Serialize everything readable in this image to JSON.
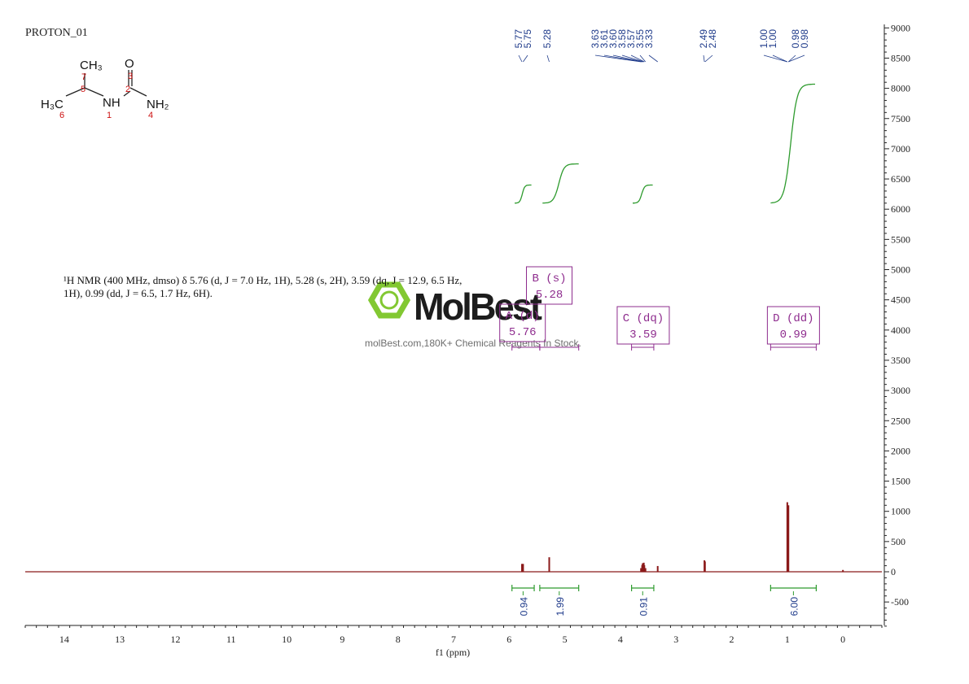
{
  "spectrum_id": "PROTON_01",
  "molecule": {
    "atoms": [
      {
        "label": "CH₃",
        "number": "7"
      },
      {
        "label": "O",
        "number": "3"
      },
      {
        "label": "",
        "number": "5"
      },
      {
        "label": "",
        "number": "2"
      },
      {
        "label": "H₃C",
        "number": "6"
      },
      {
        "label": "NH",
        "number": "1"
      },
      {
        "label": "NH₂",
        "number": "4"
      }
    ]
  },
  "nmr_summary": {
    "line1": "¹H NMR (400 MHz, dmso) δ 5.76 (d, J = 7.0 Hz, 1H), 5.28 (s, 2H), 3.59 (dq, J = 12.9, 6.5 Hz,",
    "line2": "1H), 0.99 (dd, J = 6.5, 1.7 Hz, 6H)."
  },
  "watermark": {
    "brand": "MolBest",
    "tagline": "molBest.com,180K+ Chemical Reagents In Stock."
  },
  "chart_data": {
    "type": "line",
    "xlabel": "f1 (ppm)",
    "xlim": [
      14.7,
      -0.7
    ],
    "x_ticks": [
      14,
      13,
      12,
      11,
      10,
      9,
      8,
      7,
      6,
      5,
      4,
      3,
      2,
      1,
      0
    ],
    "ylim": [
      -900,
      9000
    ],
    "y_ticks": [
      9000,
      8500,
      8000,
      7500,
      7000,
      6500,
      6000,
      5500,
      5000,
      4500,
      4000,
      3500,
      3000,
      2500,
      2000,
      1500,
      1000,
      500,
      0,
      -500
    ],
    "peaks": [
      {
        "ppm": 5.77,
        "height": 130
      },
      {
        "ppm": 5.75,
        "height": 130
      },
      {
        "ppm": 5.28,
        "height": 240
      },
      {
        "ppm": 3.63,
        "height": 60
      },
      {
        "ppm": 3.61,
        "height": 110
      },
      {
        "ppm": 3.6,
        "height": 140
      },
      {
        "ppm": 3.58,
        "height": 150
      },
      {
        "ppm": 3.57,
        "height": 110
      },
      {
        "ppm": 3.55,
        "height": 60
      },
      {
        "ppm": 3.33,
        "height": 95
      },
      {
        "ppm": 2.49,
        "height": 190
      },
      {
        "ppm": 2.48,
        "height": 170
      },
      {
        "ppm": 1.0,
        "height": 1150
      },
      {
        "ppm": 0.99,
        "height": 600
      },
      {
        "ppm": 0.98,
        "height": 1100
      },
      {
        "ppm": 0.0,
        "height": 30
      }
    ],
    "peak_labels": [
      {
        "group": [
          5.77,
          5.75
        ],
        "labels": [
          "5.77",
          "5.75"
        ]
      },
      {
        "group": [
          5.28
        ],
        "labels": [
          "5.28"
        ]
      },
      {
        "group": [
          3.63,
          3.61,
          3.6,
          3.58,
          3.57,
          3.55,
          3.33,
          2.49,
          2.48
        ],
        "labels": [
          "3.63",
          "3.61",
          "3.60",
          "3.58",
          "3.57",
          "3.55",
          "3.33",
          "2.49",
          "2.48"
        ]
      },
      {
        "group": [
          1.0,
          1.0,
          0.98,
          0.98
        ],
        "labels": [
          "1.00",
          "1.00",
          "0.98",
          "0.98"
        ]
      }
    ],
    "integration_curves": [
      {
        "from": 5.9,
        "to": 5.6,
        "start": 6100,
        "end": 6400
      },
      {
        "from": 5.4,
        "to": 4.75,
        "start": 6100,
        "end": 6750
      },
      {
        "from": 3.78,
        "to": 3.42,
        "start": 6100,
        "end": 6400
      },
      {
        "from": 1.3,
        "to": 0.5,
        "start": 6100,
        "end": 8070
      }
    ],
    "integrals": [
      {
        "from": 5.95,
        "to": 5.55,
        "value": "0.94"
      },
      {
        "from": 5.45,
        "to": 4.75,
        "value": "1.99"
      },
      {
        "from": 3.8,
        "to": 3.4,
        "value": "0.91"
      },
      {
        "from": 1.3,
        "to": 0.48,
        "value": "6.00"
      }
    ],
    "multiplets": [
      {
        "letter": "A (d)",
        "shift": "5.76",
        "from": 5.95,
        "to": 5.45,
        "box_center": 5.76
      },
      {
        "letter": "B (s)",
        "shift": "5.28",
        "from": 5.45,
        "to": 4.75,
        "box_center": 5.28
      },
      {
        "letter": "C (dq)",
        "shift": "3.59",
        "from": 3.8,
        "to": 3.4,
        "box_center": 3.59
      },
      {
        "letter": "D (dd)",
        "shift": "0.99",
        "from": 1.3,
        "to": 0.48,
        "box_center": 0.89
      }
    ],
    "colors": {
      "spectrum": "#8b1a1a",
      "integral_curve": "#2e9b2e",
      "integral_bar": "#2e9b2e",
      "integral_value": "#1e3a8a",
      "peak_label": "#1e3a8a",
      "multiplet_box": "#8e2c8e",
      "atom_number": "#cc1111",
      "watermark_green": "#7cc628"
    }
  }
}
